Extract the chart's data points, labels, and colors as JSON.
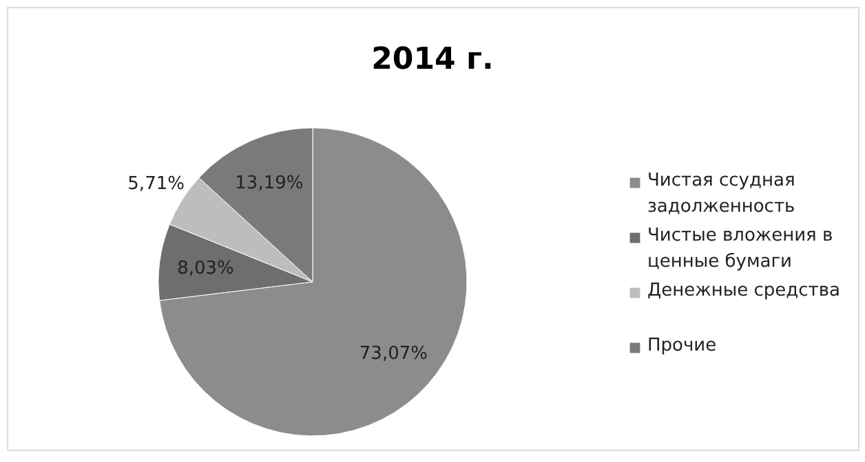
{
  "chart_data": {
    "type": "pie",
    "title": "2014 г.",
    "categories": [
      "Чистая ссудная задолженность",
      "Чистые вложения в ценные бумаги",
      "Денежные средства",
      "Прочие"
    ],
    "values": [
      73.07,
      8.03,
      5.71,
      13.19
    ],
    "colors": [
      "#8c8c8c",
      "#6e6e6e",
      "#bdbdbd",
      "#7a7a7a"
    ],
    "value_labels": [
      "73,07%",
      "8,03%",
      "5,71%",
      "13,19%"
    ],
    "legend": "right"
  }
}
